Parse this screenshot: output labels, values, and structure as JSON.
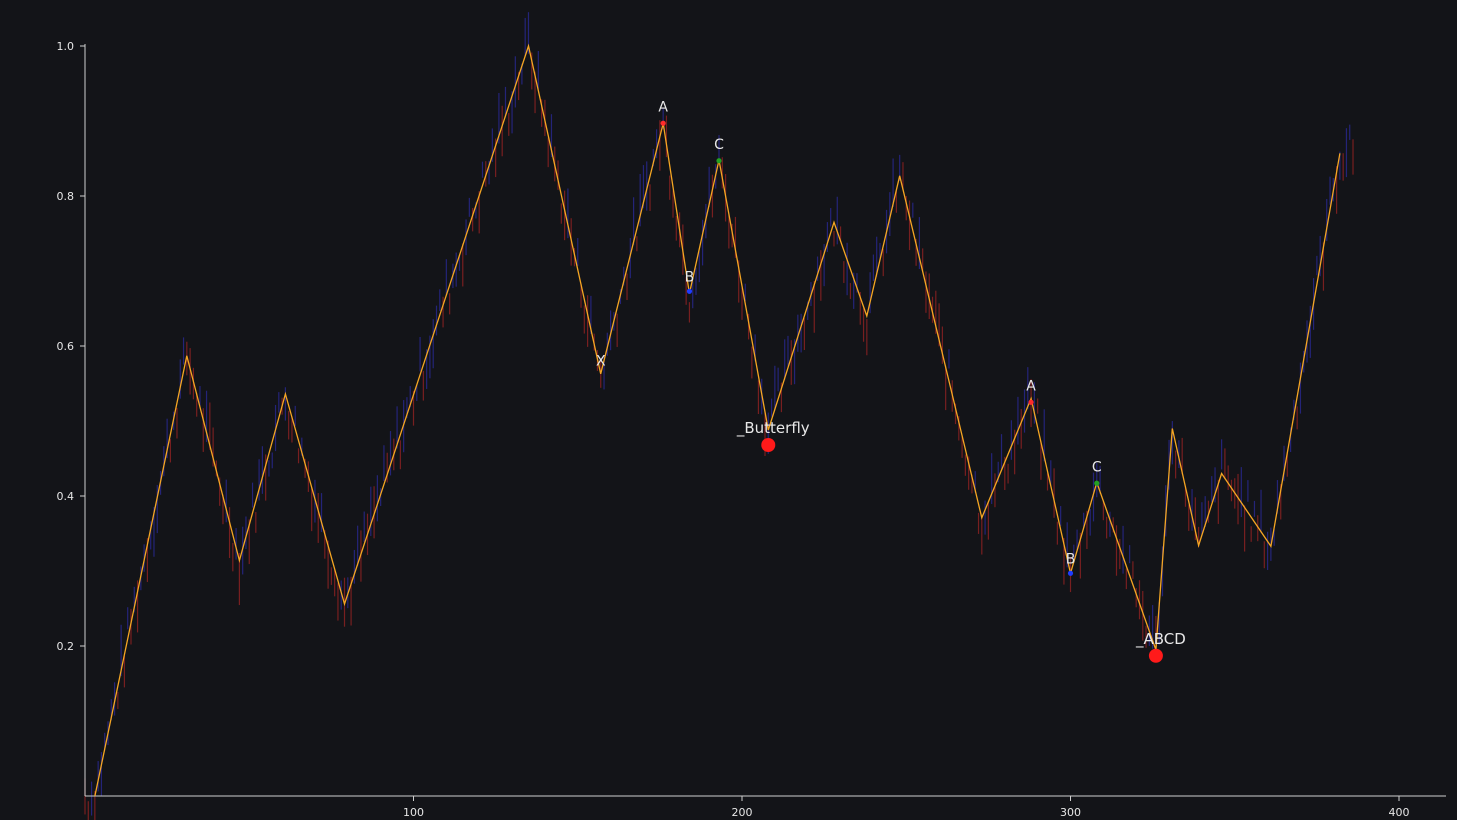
{
  "theme": {
    "background": "#131418",
    "axis_color": "#cfcfcf",
    "label_color": "#e6e6e6",
    "zigzag_color": "#f5a623",
    "candle_up_color": "#2a2a9a",
    "candle_down_color": "#9a2323",
    "point_colors": {
      "A": "#ff2b2b",
      "B": "#1f3cff",
      "C": "#23a023",
      "completion": "#ff1a1a"
    }
  },
  "chart_data": {
    "type": "line",
    "title": "",
    "xlabel": "",
    "ylabel": "",
    "xlim": [
      0,
      415
    ],
    "ylim": [
      0,
      1.0
    ],
    "x_ticks": [
      {
        "value": 100,
        "label": "100"
      },
      {
        "value": 200,
        "label": "200"
      },
      {
        "value": 300,
        "label": "300"
      },
      {
        "value": 400,
        "label": "400"
      }
    ],
    "y_ticks": [
      {
        "value": 0.2,
        "label": "0.2"
      },
      {
        "value": 0.4,
        "label": "0.4"
      },
      {
        "value": 0.6,
        "label": "0.6"
      },
      {
        "value": 0.8,
        "label": "0.8"
      },
      {
        "value": 1.0,
        "label": "1.0"
      }
    ],
    "grid": false,
    "legend": "none",
    "zigzag": {
      "x": [
        3,
        31,
        47,
        61,
        79,
        135,
        157,
        176,
        184,
        193,
        208,
        228,
        238,
        248,
        273,
        288,
        300,
        308,
        326,
        331,
        339,
        346,
        361,
        382
      ],
      "y": [
        0.0,
        0.587,
        0.314,
        0.536,
        0.256,
        1.0,
        0.563,
        0.897,
        0.67,
        0.848,
        0.488,
        0.765,
        0.64,
        0.827,
        0.371,
        0.53,
        0.297,
        0.418,
        0.195,
        0.49,
        0.334,
        0.43,
        0.333,
        0.857
      ]
    },
    "patterns": [
      {
        "name": "_Butterfly",
        "points": [
          {
            "label": "X",
            "x": 157,
            "y": 0.581,
            "marker": "none"
          },
          {
            "label": "A",
            "x": 176,
            "y": 0.897,
            "marker": "A"
          },
          {
            "label": "B",
            "x": 184,
            "y": 0.673,
            "marker": "B"
          },
          {
            "label": "C",
            "x": 193,
            "y": 0.847,
            "marker": "C"
          }
        ],
        "completion": {
          "x": 208,
          "y": 0.468
        }
      },
      {
        "name": "_ABCD",
        "points": [
          {
            "label": "A",
            "x": 288,
            "y": 0.525,
            "marker": "A"
          },
          {
            "label": "B",
            "x": 300,
            "y": 0.297,
            "marker": "B"
          },
          {
            "label": "C",
            "x": 308,
            "y": 0.417,
            "marker": "C"
          }
        ],
        "completion": {
          "x": 326,
          "y": 0.187
        }
      }
    ],
    "price_bars": {
      "x_start": 0,
      "x_end": 386,
      "step": 2
    }
  }
}
